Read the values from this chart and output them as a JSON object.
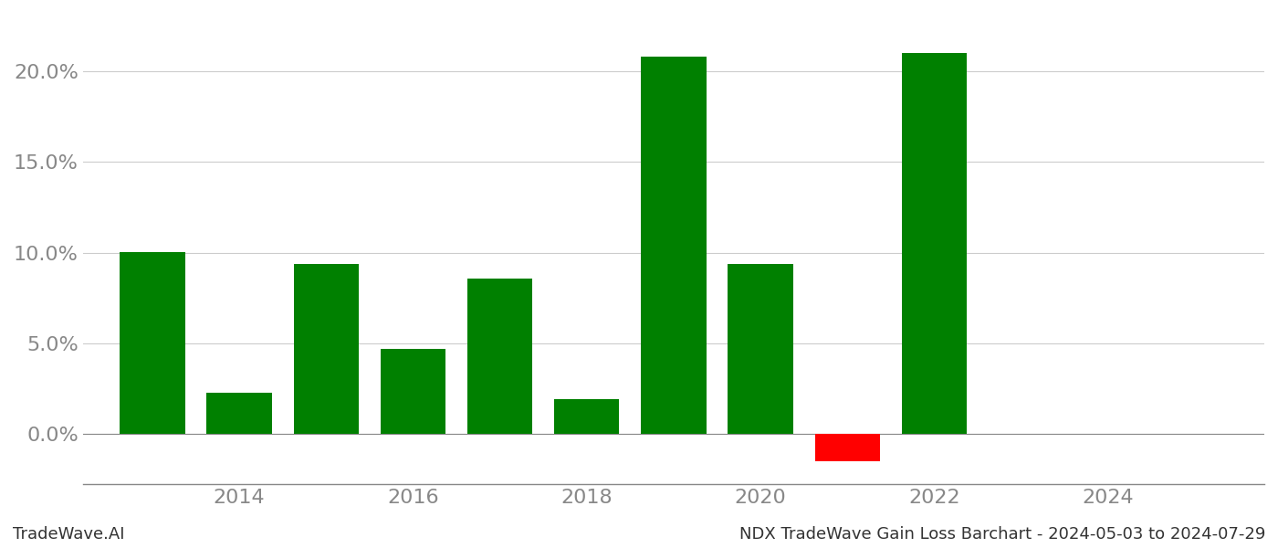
{
  "years": [
    2013,
    2014,
    2015,
    2016,
    2017,
    2018,
    2019,
    2020,
    2021,
    2022
  ],
  "values": [
    0.1002,
    0.0225,
    0.0935,
    0.047,
    0.0855,
    0.0188,
    0.2085,
    0.0935,
    -0.0155,
    0.2105
  ],
  "colors": [
    "#008000",
    "#008000",
    "#008000",
    "#008000",
    "#008000",
    "#008000",
    "#008000",
    "#008000",
    "#ff0000",
    "#008000"
  ],
  "footer_left": "TradeWave.AI",
  "footer_right": "NDX TradeWave Gain Loss Barchart - 2024-05-03 to 2024-07-29",
  "ylim_min": -0.028,
  "ylim_max": 0.232,
  "xlim_min": 2012.2,
  "xlim_max": 2025.8,
  "xtick_labels": [
    "2014",
    "2016",
    "2018",
    "2020",
    "2022",
    "2024"
  ],
  "xtick_positions": [
    2014,
    2016,
    2018,
    2020,
    2022,
    2024
  ],
  "ytick_values": [
    0.0,
    0.05,
    0.1,
    0.15,
    0.2
  ],
  "bar_width": 0.75,
  "background_color": "#ffffff",
  "grid_color": "#cccccc",
  "axis_color": "#888888",
  "tick_color": "#888888",
  "label_fontsize": 16,
  "footer_fontsize": 13
}
